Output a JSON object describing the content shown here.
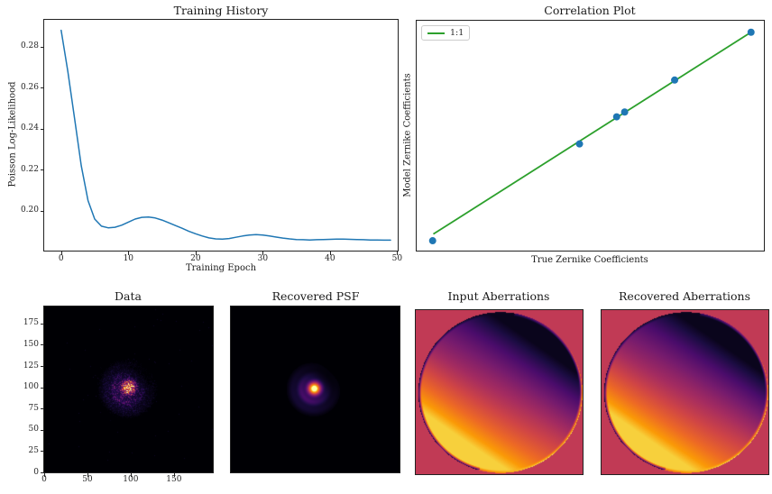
{
  "figure": {
    "background": "#ffffff",
    "text_color": "#262626",
    "axes_edge_color": "#222222"
  },
  "colors": {
    "line_blue": "#1f77b4",
    "line_green": "#2ca02c",
    "marker_blue": "#1f77b4",
    "masked_background_crimson": "#c13a55",
    "colormap_name": "inferno",
    "colormap_stops": [
      [
        0.0,
        "#000004"
      ],
      [
        0.13,
        "#1b0c42"
      ],
      [
        0.25,
        "#4a0c6b"
      ],
      [
        0.38,
        "#781c6d"
      ],
      [
        0.5,
        "#a52c60"
      ],
      [
        0.62,
        "#cf4446"
      ],
      [
        0.75,
        "#ed6925"
      ],
      [
        0.87,
        "#fb9a06"
      ],
      [
        0.95,
        "#f7d03c"
      ],
      [
        1.0,
        "#fcffa4"
      ]
    ]
  },
  "chart_data": [
    {
      "id": "training_history",
      "type": "line",
      "title": "Training History",
      "xlabel": "Training Epoch",
      "ylabel": "Poisson Log-Likelihood",
      "line_color": "#1f77b4",
      "xlim": [
        -2.52,
        50.08
      ],
      "ylim": [
        0.1806,
        0.2931
      ],
      "xticks": {
        "values": [
          0,
          10,
          20,
          30,
          40,
          50
        ],
        "labels": [
          "0",
          "10",
          "20",
          "30",
          "40",
          "50"
        ]
      },
      "yticks": {
        "values": [
          0.2,
          0.22,
          0.24,
          0.26,
          0.28
        ],
        "labels": [
          "0.20",
          "0.22",
          "0.24",
          "0.26",
          "0.28"
        ]
      },
      "x": [
        0,
        1,
        2,
        3,
        4,
        5,
        6,
        7,
        8,
        9,
        10,
        11,
        12,
        13,
        14,
        15,
        16,
        17,
        18,
        19,
        20,
        21,
        22,
        23,
        24,
        25,
        26,
        27,
        28,
        29,
        30,
        31,
        32,
        33,
        34,
        35,
        36,
        37,
        38,
        39,
        40,
        41,
        42,
        43,
        44,
        45,
        46,
        47,
        48,
        49
      ],
      "values": [
        0.288,
        0.268,
        0.245,
        0.222,
        0.205,
        0.196,
        0.1925,
        0.1917,
        0.192,
        0.193,
        0.1945,
        0.196,
        0.1968,
        0.197,
        0.1965,
        0.1955,
        0.1942,
        0.1928,
        0.1915,
        0.19,
        0.1888,
        0.1877,
        0.1868,
        0.1863,
        0.1862,
        0.1865,
        0.1871,
        0.1877,
        0.1882,
        0.1884,
        0.1882,
        0.1877,
        0.1872,
        0.1867,
        0.1863,
        0.186,
        0.1859,
        0.1858,
        0.1859,
        0.186,
        0.1861,
        0.1862,
        0.1862,
        0.1861,
        0.186,
        0.1859,
        0.1858,
        0.1858,
        0.1857,
        0.1857
      ],
      "grid": false
    },
    {
      "id": "correlation",
      "type": "scatter",
      "title": "Correlation Plot",
      "xlabel": "True Zernike Coefficients",
      "ylabel": "Model Zernike Coefficients",
      "axes_unticked": true,
      "legend": [
        {
          "label": "1:1",
          "color": "#2ca02c"
        }
      ],
      "marker_color": "#1f77b4",
      "marker_radius_px": 4,
      "points_axis_fraction": [
        [
          0.046,
          0.043
        ],
        [
          0.469,
          0.464
        ],
        [
          0.576,
          0.582
        ],
        [
          0.599,
          0.603
        ],
        [
          0.743,
          0.742
        ],
        [
          0.963,
          0.95
        ]
      ],
      "identity_line_axis_fraction": [
        [
          0.048,
          0.072
        ],
        [
          0.965,
          0.952
        ]
      ]
    },
    {
      "id": "data_image",
      "type": "heatmap",
      "title": "Data",
      "colormap": "inferno",
      "extent": [
        0,
        195,
        0,
        195
      ],
      "xticks": {
        "values": [
          0,
          50,
          100,
          150
        ],
        "labels": [
          "0",
          "50",
          "100",
          "150"
        ]
      },
      "yticks": {
        "values": [
          0,
          25,
          50,
          75,
          100,
          125,
          150,
          175
        ],
        "labels": [
          "0",
          "25",
          "50",
          "75",
          "100",
          "125",
          "150",
          "175"
        ]
      },
      "psf": {
        "center": [
          97,
          100
        ],
        "sigma": 5.2,
        "amp": 1.35,
        "rings": [
          {
            "r": 17,
            "sd": 3.4,
            "amp": 0.2
          },
          {
            "r": 27,
            "sd": 4.0,
            "amp": 0.06
          }
        ],
        "ring_angle_deg": 135,
        "noisy": true,
        "noise_seed": 7
      }
    },
    {
      "id": "recovered_psf",
      "type": "heatmap",
      "title": "Recovered PSF",
      "colormap": "inferno",
      "extent": [
        0,
        195,
        0,
        195
      ],
      "psf": {
        "center": [
          96,
          99
        ],
        "sigma": 4.9,
        "amp": 1.2,
        "rings": [
          {
            "r": 15.5,
            "sd": 3.2,
            "amp": 0.16
          },
          {
            "r": 25,
            "sd": 3.5,
            "amp": 0.055
          }
        ],
        "ring_angle_deg": 135,
        "noisy": false,
        "noise_seed": 1
      }
    },
    {
      "id": "input_aberrations",
      "type": "heatmap",
      "title": "Input Aberrations",
      "colormap": "inferno",
      "masked_color": "#c13a55",
      "pupil": {
        "tilt": 0.45,
        "tilt_quad": 0.2,
        "cross": 0.13,
        "interior_clip": [
          0.05,
          0.95
        ],
        "rim_start": 0.962,
        "rim_bright_center_deg": 40,
        "rim_bright_amp": 0.52,
        "rim_bright_window_deg": [
          -80,
          105
        ],
        "rim_dark_value": 0.06
      }
    },
    {
      "id": "recovered_aberrations",
      "type": "heatmap",
      "title": "Recovered Aberrations",
      "colormap": "inferno",
      "masked_color": "#c13a55",
      "pupil": {
        "tilt": 0.45,
        "tilt_quad": 0.2,
        "cross": 0.13,
        "interior_clip": [
          0.05,
          0.95
        ],
        "rim_start": 0.962,
        "rim_bright_center_deg": 40,
        "rim_bright_amp": 0.52,
        "rim_bright_window_deg": [
          -80,
          105
        ],
        "rim_dark_value": 0.06
      }
    }
  ]
}
